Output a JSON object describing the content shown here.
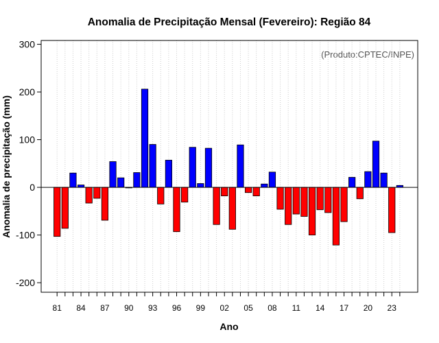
{
  "chart_data": {
    "type": "bar",
    "title": "Anomalia de Precipitação Mensal (Fevereiro): Região 84",
    "xlabel": "Ano",
    "ylabel": "Anomalia de precipitação (mm)",
    "annotation": "(Produto:CPTEC/INPE)",
    "ylim": [
      -220,
      308
    ],
    "yticks": [
      -200,
      -100,
      0,
      100,
      200,
      300
    ],
    "ytick_labels": [
      "-200",
      "-100",
      "0",
      "100",
      "200",
      "300"
    ],
    "grid": true,
    "colors": {
      "positive": "#0000ff",
      "negative": "#ff0000"
    },
    "x": [
      1981,
      1982,
      1983,
      1984,
      1985,
      1986,
      1987,
      1988,
      1989,
      1990,
      1991,
      1992,
      1993,
      1994,
      1995,
      1996,
      1997,
      1998,
      1999,
      2000,
      2001,
      2002,
      2003,
      2004,
      2005,
      2006,
      2007,
      2008,
      2009,
      2010,
      2011,
      2012,
      2013,
      2014,
      2015,
      2016,
      2017,
      2018,
      2019,
      2020,
      2021,
      2022,
      2023,
      2024
    ],
    "values": [
      -103,
      -86,
      30,
      5,
      -33,
      -23,
      -69,
      54,
      20,
      -1,
      31,
      206,
      90,
      -35,
      57,
      -93,
      -31,
      84,
      8,
      82,
      -78,
      -18,
      -88,
      89,
      -11,
      -18,
      7,
      32,
      -46,
      -78,
      -56,
      -61,
      -100,
      -47,
      -53,
      -121,
      -72,
      21,
      -24,
      33,
      97,
      30,
      -95,
      4
    ],
    "xtick_labels": [
      {
        "year": 1981,
        "label": "81"
      },
      {
        "year": 1984,
        "label": "84"
      },
      {
        "year": 1987,
        "label": "87"
      },
      {
        "year": 1990,
        "label": "90"
      },
      {
        "year": 1993,
        "label": "93"
      },
      {
        "year": 1996,
        "label": "96"
      },
      {
        "year": 1999,
        "label": "99"
      },
      {
        "year": 2002,
        "label": "02"
      },
      {
        "year": 2005,
        "label": "05"
      },
      {
        "year": 2008,
        "label": "08"
      },
      {
        "year": 2011,
        "label": "11"
      },
      {
        "year": 2014,
        "label": "14"
      },
      {
        "year": 2017,
        "label": "17"
      },
      {
        "year": 2020,
        "label": "20"
      },
      {
        "year": 2023,
        "label": "23"
      }
    ]
  }
}
